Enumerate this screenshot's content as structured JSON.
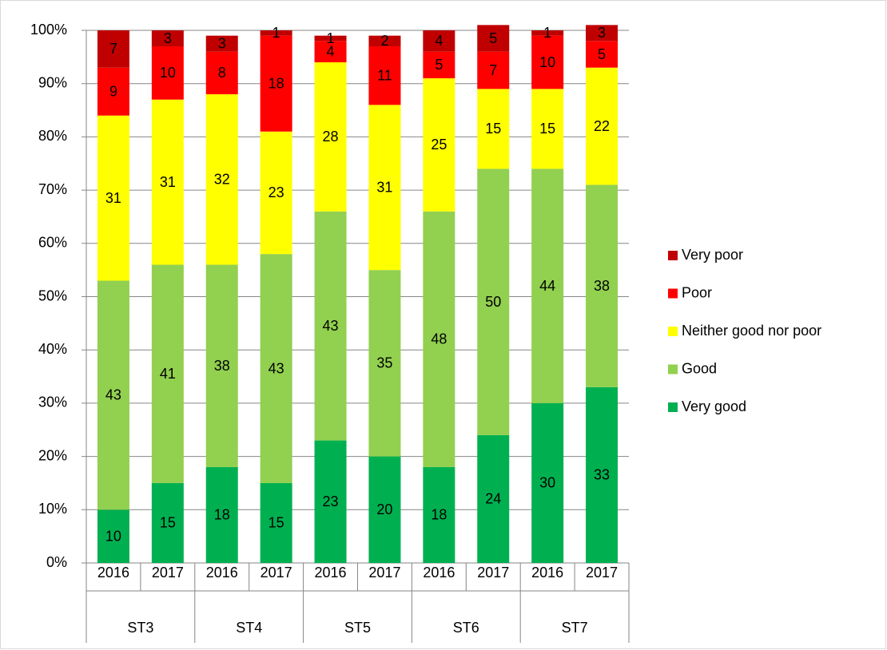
{
  "chart_data": {
    "type": "stacked_bar",
    "categories": [
      "2016",
      "2017",
      "2016",
      "2017",
      "2016",
      "2017",
      "2016",
      "2017",
      "2016",
      "2017"
    ],
    "groups": [
      "ST3",
      "ST4",
      "ST5",
      "ST6",
      "ST7"
    ],
    "series": [
      {
        "name": "Very good",
        "color": "#00b050",
        "values": [
          10,
          15,
          18,
          15,
          23,
          20,
          18,
          24,
          30,
          33
        ]
      },
      {
        "name": "Good",
        "color": "#92d050",
        "values": [
          43,
          41,
          38,
          43,
          43,
          35,
          48,
          50,
          44,
          38
        ]
      },
      {
        "name": "Neither good nor poor",
        "color": "#ffff00",
        "values": [
          31,
          31,
          32,
          23,
          28,
          31,
          25,
          15,
          15,
          22
        ]
      },
      {
        "name": "Poor",
        "color": "#ff0000",
        "values": [
          9,
          10,
          8,
          18,
          4,
          11,
          5,
          7,
          10,
          5
        ]
      },
      {
        "name": "Very poor",
        "color": "#c00000",
        "values": [
          7,
          3,
          3,
          1,
          1,
          2,
          4,
          5,
          1,
          3
        ]
      }
    ],
    "ylim": [
      0,
      100
    ],
    "yticks": [
      {
        "value": 0,
        "label": "0%"
      },
      {
        "value": 10,
        "label": "10%"
      },
      {
        "value": 20,
        "label": "20%"
      },
      {
        "value": 30,
        "label": "30%"
      },
      {
        "value": 40,
        "label": "40%"
      },
      {
        "value": 50,
        "label": "50%"
      },
      {
        "value": 60,
        "label": "60%"
      },
      {
        "value": 70,
        "label": "70%"
      },
      {
        "value": 80,
        "label": "80%"
      },
      {
        "value": 90,
        "label": "90%"
      },
      {
        "value": 100,
        "label": "100%"
      }
    ],
    "grid": true,
    "legend": "right"
  }
}
